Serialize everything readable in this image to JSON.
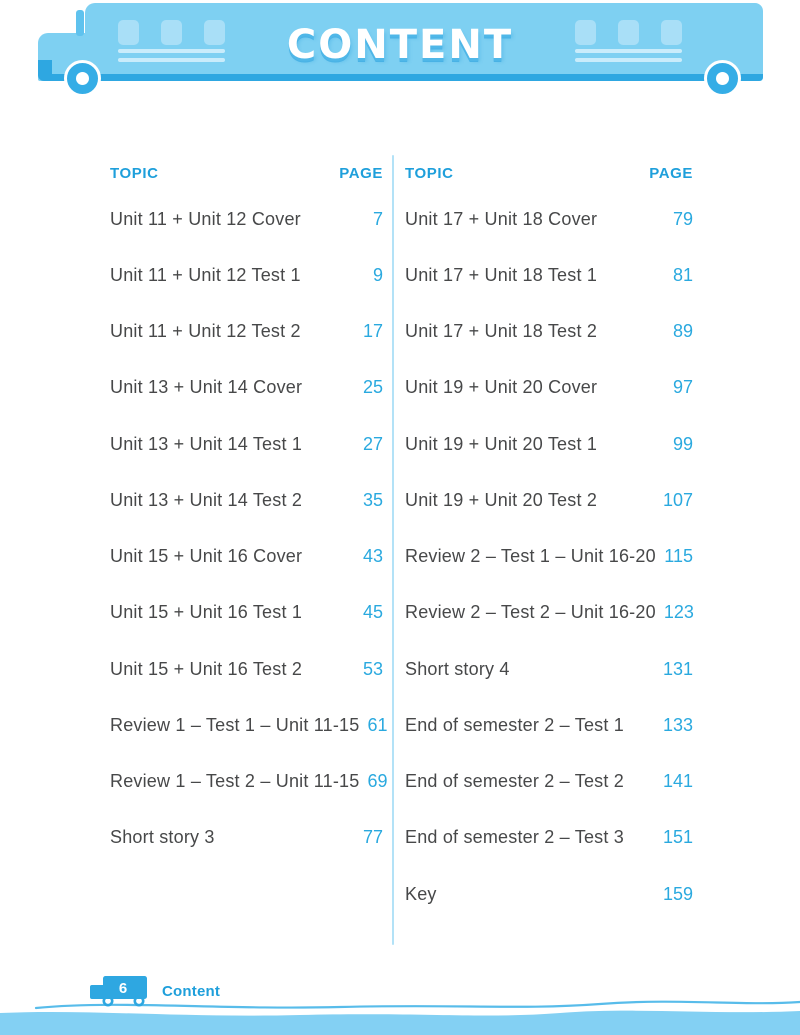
{
  "header": {
    "title": "CONTENT"
  },
  "columns": [
    {
      "topic_label": "TOPIC",
      "page_label": "PAGE",
      "rows": [
        {
          "topic": "Unit 11 + Unit 12 Cover",
          "page": "7"
        },
        {
          "topic": "Unit 11 + Unit 12 Test 1",
          "page": "9"
        },
        {
          "topic": "Unit 11 + Unit 12 Test 2",
          "page": "17"
        },
        {
          "topic": "Unit 13 + Unit 14 Cover",
          "page": "25"
        },
        {
          "topic": "Unit 13 + Unit 14 Test 1",
          "page": "27"
        },
        {
          "topic": "Unit 13 + Unit 14 Test 2",
          "page": "35"
        },
        {
          "topic": "Unit 15 + Unit 16 Cover",
          "page": "43"
        },
        {
          "topic": "Unit 15 + Unit 16 Test 1",
          "page": "45"
        },
        {
          "topic": "Unit 15 + Unit 16 Test 2",
          "page": "53"
        },
        {
          "topic": "Review 1 – Test 1 – Unit 11-15",
          "page": "61"
        },
        {
          "topic": "Review 1 – Test 2 – Unit 11-15",
          "page": "69"
        },
        {
          "topic": "Short story 3",
          "page": "77"
        }
      ]
    },
    {
      "topic_label": "TOPIC",
      "page_label": "PAGE",
      "rows": [
        {
          "topic": "Unit 17 + Unit 18 Cover",
          "page": "79"
        },
        {
          "topic": "Unit 17 + Unit 18 Test 1",
          "page": "81"
        },
        {
          "topic": "Unit 17 + Unit 18 Test 2",
          "page": "89"
        },
        {
          "topic": "Unit 19 + Unit 20 Cover",
          "page": "97"
        },
        {
          "topic": "Unit 19 + Unit 20 Test 1",
          "page": "99"
        },
        {
          "topic": "Unit 19 + Unit 20 Test 2",
          "page": "107"
        },
        {
          "topic": "Review 2 – Test 1 – Unit 16-20",
          "page": "115"
        },
        {
          "topic": "Review 2 – Test 2 – Unit 16-20",
          "page": "123"
        },
        {
          "topic": "Short story 4",
          "page": "131"
        },
        {
          "topic": "End of semester 2 – Test 1",
          "page": "133"
        },
        {
          "topic": "End of semester 2 – Test 2",
          "page": "141"
        },
        {
          "topic": "End of semester 2 – Test 3",
          "page": "151"
        },
        {
          "topic": "Key",
          "page": "159"
        }
      ]
    }
  ],
  "footer": {
    "page_number": "6",
    "label": "Content"
  },
  "colors": {
    "bus_body": "#7ED0F2",
    "bus_dark": "#2EA7E1",
    "bus_window": "#A9DFF7",
    "window_line": "#C9ECFB",
    "wheel_blue": "#35ADE6",
    "title_shadow": "#4FB7E8",
    "heading_blue": "#1E9FDB",
    "page_number_blue": "#2AA9DF",
    "entry_text": "#474849",
    "divider": "#B3E2F7",
    "footer_band": "#83D0F3"
  }
}
